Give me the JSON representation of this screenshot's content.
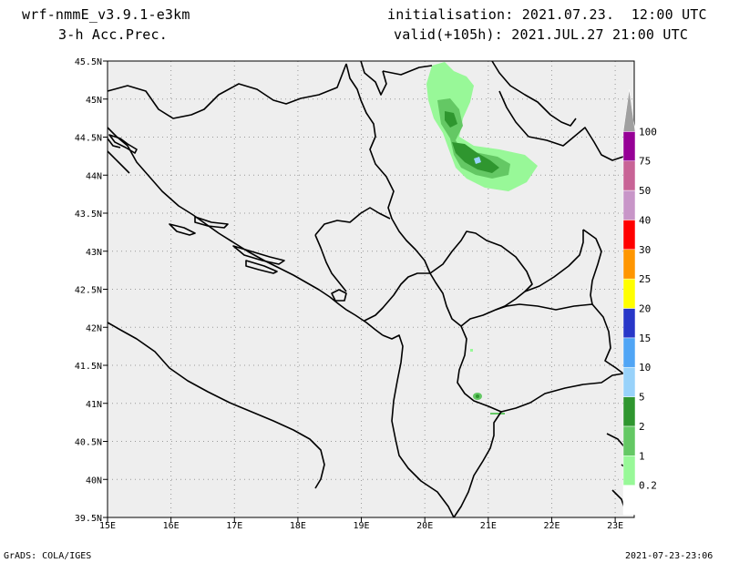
{
  "header": {
    "model": "wrf-nmmE_v3.9.1-e3km",
    "field": "3-h Acc.Prec.",
    "init": "initialisation: 2021.07.23.  12:00 UTC",
    "valid": "valid(+105h): 2021.JUL.27 21:00 UTC"
  },
  "footer": {
    "credit": "GrADS: COLA/IGES",
    "timestamp": "2021-07-23-23:06"
  },
  "map": {
    "lon_range": [
      15,
      23.3
    ],
    "lat_range": [
      39.5,
      45.5
    ],
    "lon_ticks": [
      "15E",
      "16E",
      "17E",
      "18E",
      "19E",
      "20E",
      "21E",
      "22E",
      "23E"
    ],
    "lat_ticks": [
      "39.5N",
      "40N",
      "40.5N",
      "41N",
      "41.5N",
      "42N",
      "42.5N",
      "43N",
      "43.5N",
      "44N",
      "44.5N",
      "45N",
      "45.5N"
    ],
    "background_color": "#eeeeee",
    "grid": "dotted"
  },
  "legend": {
    "levels": [
      "0.2",
      "1",
      "2",
      "5",
      "10",
      "15",
      "20",
      "25",
      "30",
      "40",
      "50",
      "75",
      "100"
    ],
    "colors": [
      "#ffffff",
      "#98f898",
      "#64c864",
      "#2f962f",
      "#98d2fa",
      "#50a5f5",
      "#2837c8",
      "#ffff00",
      "#ff9600",
      "#ff0000",
      "#c896c8",
      "#c86496",
      "#960096",
      "#a0a0a0"
    ]
  }
}
